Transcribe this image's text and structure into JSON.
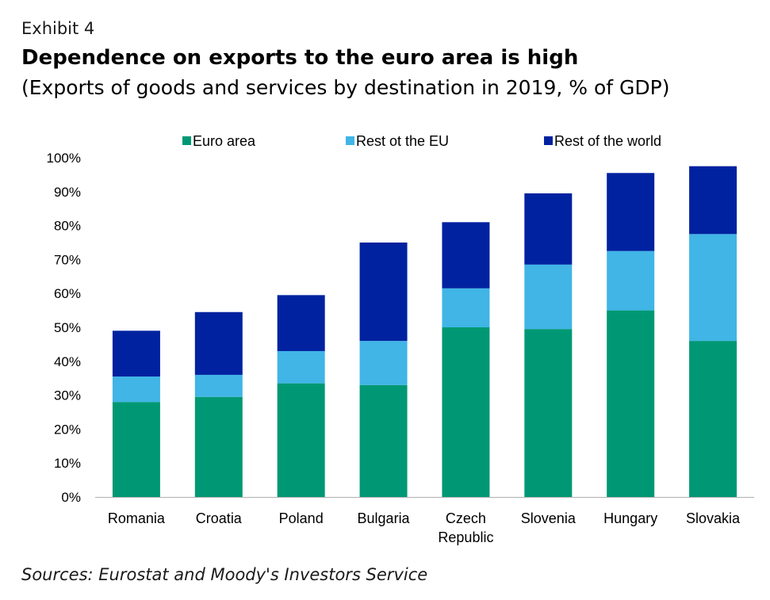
{
  "header": {
    "exhibit": "Exhibit 4",
    "title": "Dependence on exports to the euro area is high",
    "subtitle": "(Exports of goods and services by destination in 2019, % of GDP)"
  },
  "footer": {
    "source": "Sources: Eurostat and Moody's Investors Service"
  },
  "chart_data": {
    "type": "bar",
    "stacked": true,
    "categories": [
      "Romania",
      "Croatia",
      "Poland",
      "Bulgaria",
      "Czech Republic",
      "Slovenia",
      "Hungary",
      "Slovakia"
    ],
    "category_label_lines": [
      [
        "Romania"
      ],
      [
        "Croatia"
      ],
      [
        "Poland"
      ],
      [
        "Bulgaria"
      ],
      [
        "Czech",
        "Republic"
      ],
      [
        "Slovenia"
      ],
      [
        "Hungary"
      ],
      [
        "Slovakia"
      ]
    ],
    "series": [
      {
        "name": "Euro area",
        "color": "#009874",
        "values": [
          28,
          29.5,
          33.5,
          33,
          50,
          49.5,
          55,
          46
        ]
      },
      {
        "name": "Rest ot the EU",
        "color": "#40b5e6",
        "values": [
          7.5,
          6.5,
          9.5,
          13,
          11.5,
          19,
          17.5,
          31.5
        ]
      },
      {
        "name": "Rest of the world",
        "color": "#0022a0",
        "values": [
          13.5,
          18.5,
          16.5,
          29,
          19.5,
          21,
          23,
          20
        ]
      }
    ],
    "ylim": [
      0,
      100
    ],
    "yticks": [
      "0%",
      "10%",
      "20%",
      "30%",
      "40%",
      "50%",
      "60%",
      "70%",
      "80%",
      "90%",
      "100%"
    ],
    "xlabel": "",
    "ylabel": "",
    "grid": false,
    "legend_position": "top"
  }
}
